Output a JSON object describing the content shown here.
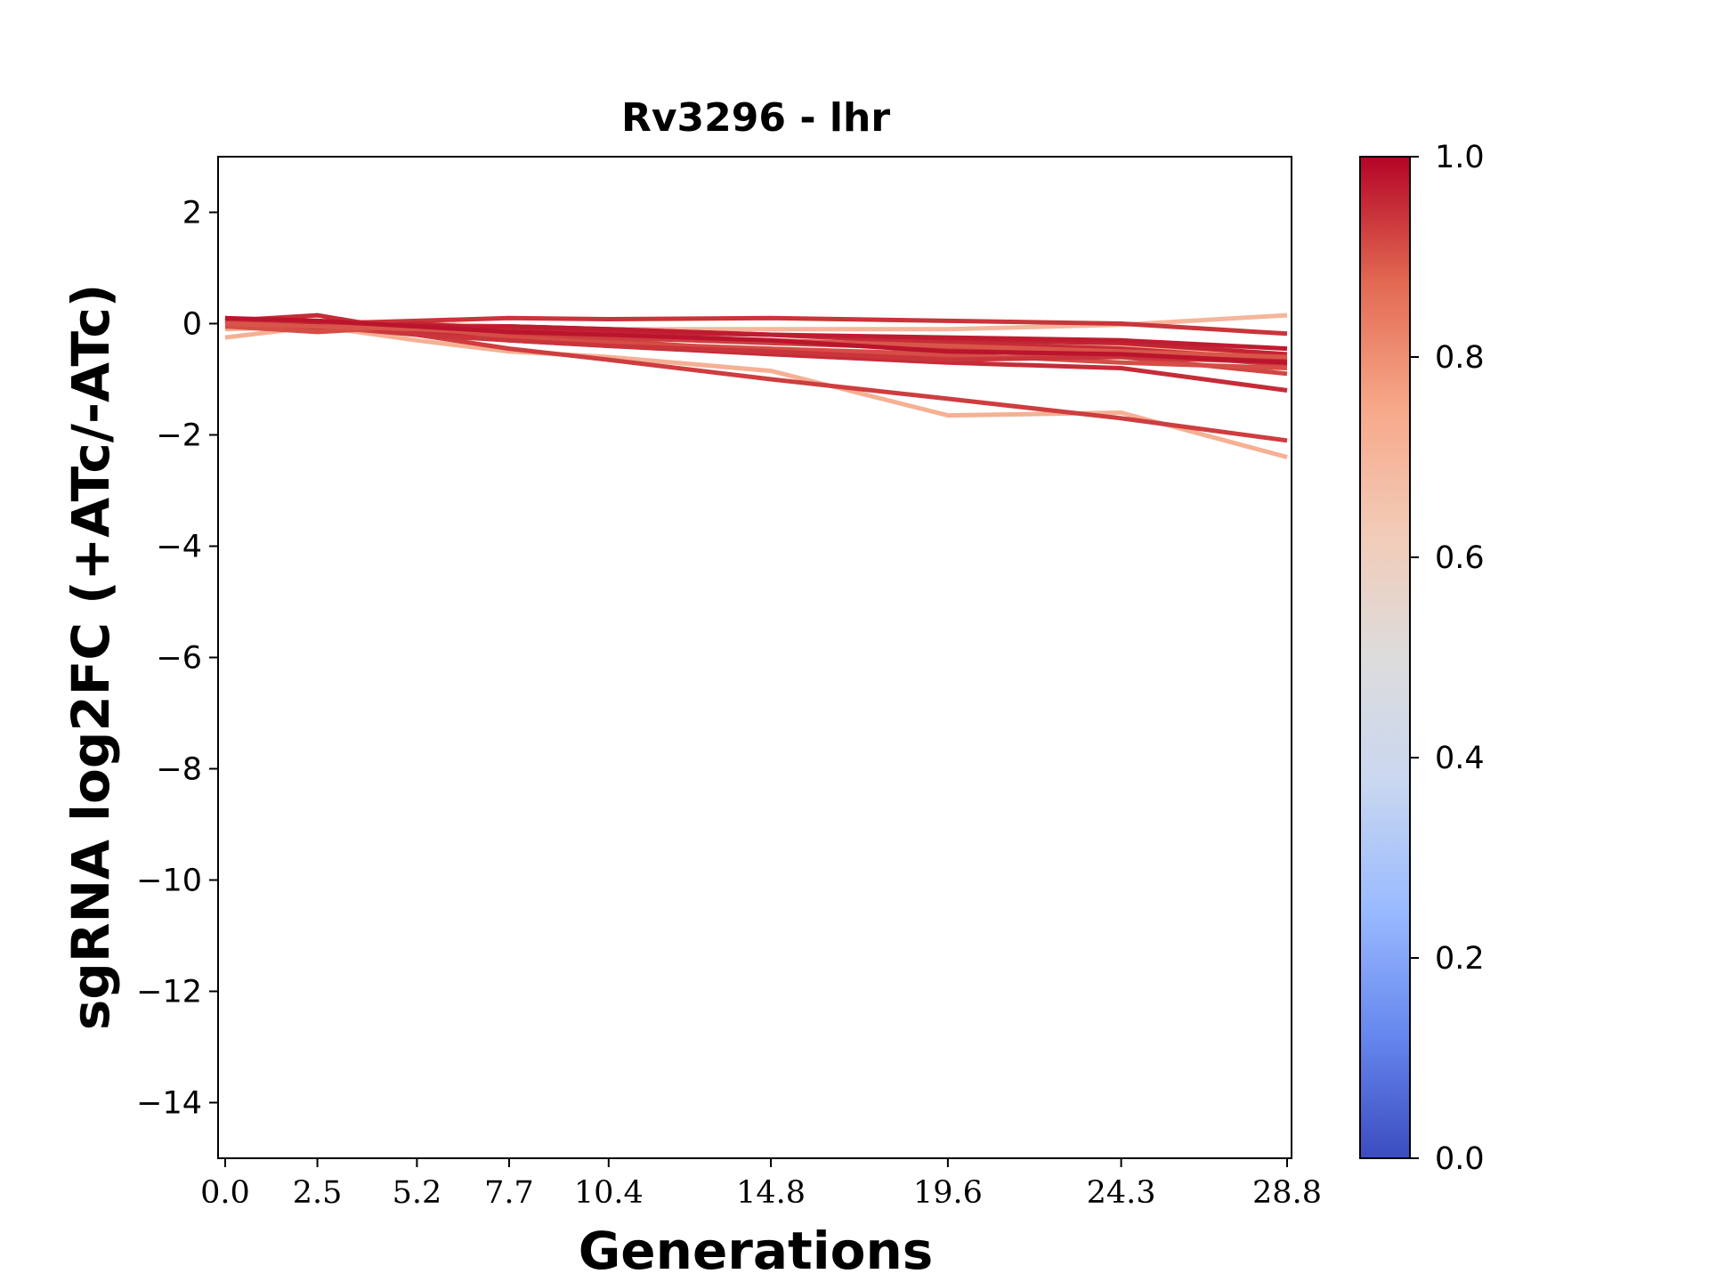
{
  "chart_data": {
    "type": "line",
    "title": "Rv3296 - lhr",
    "xlabel": "Generations",
    "ylabel": "sgRNA log2FC (+ATc/-ATc)",
    "x": [
      0.0,
      2.5,
      5.2,
      7.7,
      10.4,
      14.8,
      19.6,
      24.3,
      28.8
    ],
    "xtick_labels": [
      "0.0",
      "2.5",
      "5.2",
      "7.7",
      "10.4",
      "14.8",
      "19.6",
      "24.3",
      "28.8"
    ],
    "ylim": [
      -15,
      3
    ],
    "yticks": [
      2,
      0,
      -2,
      -4,
      -6,
      -8,
      -10,
      -12,
      -14
    ],
    "ytick_labels": [
      "2",
      "0",
      "−2",
      "−4",
      "−6",
      "−8",
      "−10",
      "−12",
      "−14"
    ],
    "grid": false,
    "colorbar": {
      "colormap": "coolwarm",
      "range": [
        0.0,
        1.0
      ],
      "ticks": [
        0.0,
        0.2,
        0.4,
        0.6,
        0.8,
        1.0
      ],
      "tick_labels": [
        "0.0",
        "0.2",
        "0.4",
        "0.6",
        "0.8",
        "1.0"
      ],
      "colors": [
        "#3b4cc0",
        "#6788ee",
        "#9abbff",
        "#c9d7f0",
        "#dddcdc",
        "#f2cbb7",
        "#f7a889",
        "#e26952",
        "#b40426"
      ]
    },
    "series": [
      {
        "color_value": 0.72,
        "values": [
          -0.25,
          -0.05,
          -0.3,
          -0.5,
          -0.6,
          -0.85,
          -1.65,
          -1.6,
          -2.4
        ]
      },
      {
        "color_value": 0.7,
        "values": [
          0.0,
          0.05,
          0.0,
          -0.05,
          -0.1,
          -0.1,
          -0.1,
          -0.02,
          0.15
        ]
      },
      {
        "color_value": 0.74,
        "values": [
          -0.1,
          -0.05,
          -0.15,
          -0.2,
          -0.25,
          -0.3,
          -0.45,
          -0.4,
          -0.6
        ]
      },
      {
        "color_value": 0.93,
        "values": [
          0.1,
          -0.05,
          -0.2,
          -0.45,
          -0.65,
          -1.0,
          -1.35,
          -1.7,
          -2.1
        ]
      },
      {
        "color_value": 0.95,
        "values": [
          0.05,
          0.15,
          -0.15,
          -0.3,
          -0.4,
          -0.55,
          -0.7,
          -0.8,
          -1.2
        ]
      },
      {
        "color_value": 0.94,
        "values": [
          -0.05,
          0.0,
          0.05,
          0.1,
          0.08,
          0.1,
          0.05,
          0.0,
          -0.18
        ]
      },
      {
        "color_value": 0.92,
        "values": [
          0.05,
          -0.05,
          -0.1,
          -0.2,
          -0.3,
          -0.5,
          -0.6,
          -0.6,
          -0.9
        ]
      },
      {
        "color_value": 0.96,
        "values": [
          0.05,
          -0.1,
          0.0,
          -0.1,
          -0.15,
          -0.2,
          -0.3,
          -0.35,
          -0.55
        ]
      },
      {
        "color_value": 0.93,
        "values": [
          0.0,
          -0.1,
          -0.05,
          -0.15,
          -0.25,
          -0.35,
          -0.45,
          -0.5,
          -0.75
        ]
      },
      {
        "color_value": 0.95,
        "values": [
          0.1,
          0.0,
          -0.1,
          -0.05,
          -0.1,
          -0.2,
          -0.35,
          -0.45,
          -0.65
        ]
      },
      {
        "color_value": 0.91,
        "values": [
          -0.05,
          -0.15,
          -0.05,
          -0.25,
          -0.35,
          -0.45,
          -0.55,
          -0.7,
          -0.8
        ]
      },
      {
        "color_value": 0.97,
        "values": [
          0.05,
          0.0,
          -0.05,
          -0.05,
          -0.1,
          -0.2,
          -0.25,
          -0.3,
          -0.45
        ]
      },
      {
        "color_value": 0.94,
        "values": [
          0.05,
          0.05,
          -0.2,
          -0.3,
          -0.4,
          -0.5,
          -0.65,
          -0.6,
          -0.7
        ]
      },
      {
        "color_value": 0.9,
        "values": [
          0.0,
          -0.05,
          -0.1,
          -0.15,
          -0.2,
          -0.3,
          -0.4,
          -0.5,
          -0.6
        ]
      },
      {
        "color_value": 0.98,
        "values": [
          0.1,
          0.05,
          -0.05,
          -0.15,
          -0.2,
          -0.3,
          -0.5,
          -0.55,
          -0.7
        ]
      }
    ]
  }
}
